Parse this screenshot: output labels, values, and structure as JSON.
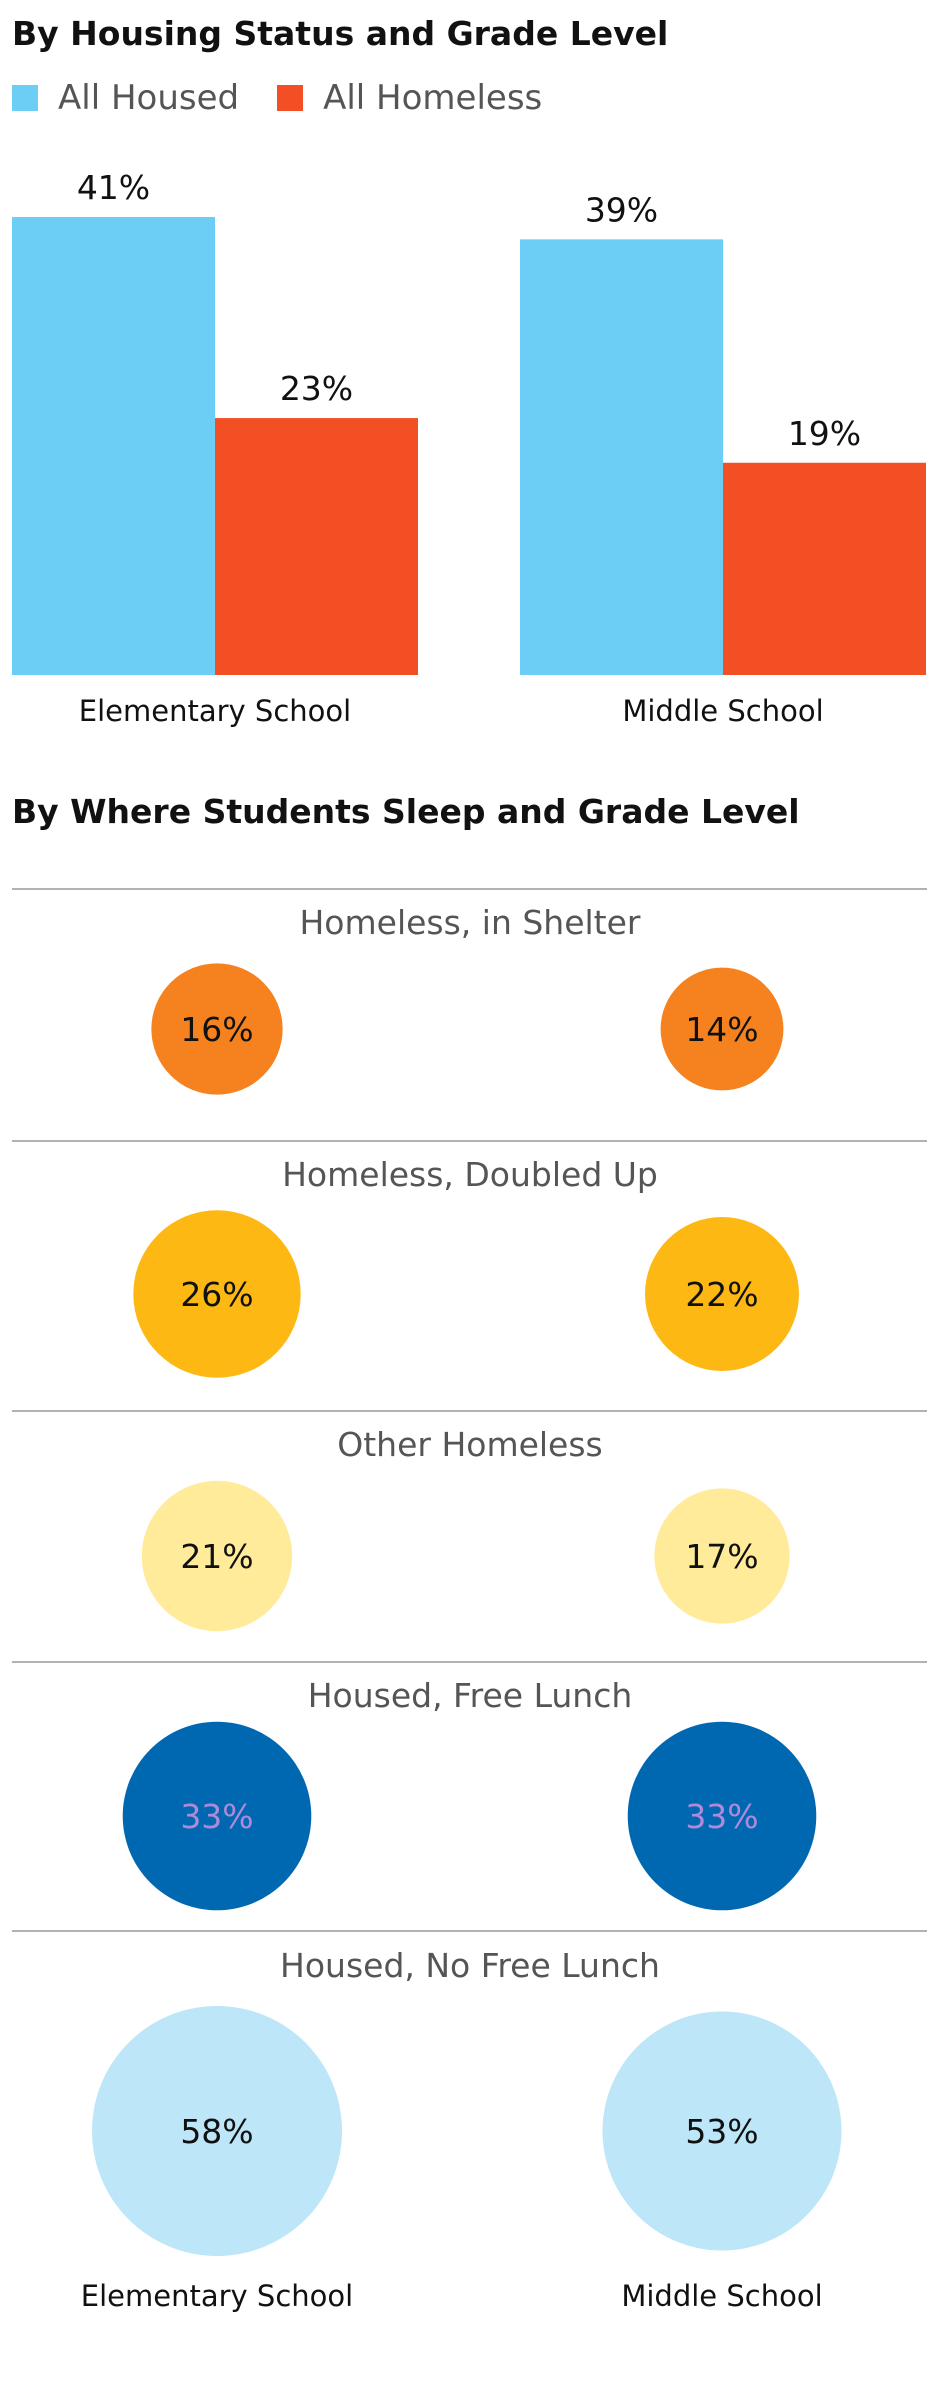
{
  "chart_data": [
    {
      "type": "bar",
      "title": "By Housing Status and Grade Level",
      "categories": [
        "Elementary School",
        "Middle School"
      ],
      "series": [
        {
          "name": "All Housed",
          "values": [
            41,
            39
          ],
          "labels": [
            "41%",
            "39%"
          ],
          "color": "#6dcef5"
        },
        {
          "name": "All Homeless",
          "values": [
            23,
            19
          ],
          "labels": [
            "23%",
            "19%"
          ],
          "color": "#f24f25"
        }
      ],
      "ylim": [
        0,
        41
      ]
    },
    {
      "type": "bubble",
      "title": "By Where Students Sleep and Grade Level",
      "columns": [
        "Elementary School",
        "Middle School"
      ],
      "groups": [
        {
          "name": "Homeless, in Shelter",
          "values": [
            16,
            14
          ],
          "labels": [
            "16%",
            "14%"
          ],
          "color": "#f5821f",
          "text_color": "#111111"
        },
        {
          "name": "Homeless, Doubled Up",
          "values": [
            26,
            22
          ],
          "labels": [
            "26%",
            "22%"
          ],
          "color": "#fdb813",
          "text_color": "#111111"
        },
        {
          "name": "Other Homeless",
          "values": [
            21,
            17
          ],
          "labels": [
            "21%",
            "17%"
          ],
          "color": "#ffeb99",
          "text_color": "#111111"
        },
        {
          "name": "Housed, Free Lunch",
          "values": [
            33,
            33
          ],
          "labels": [
            "33%",
            "33%"
          ],
          "color": "#0067b1",
          "text_color": "#b08ad8"
        },
        {
          "name": "Housed, No Free Lunch",
          "values": [
            58,
            53
          ],
          "labels": [
            "58%",
            "53%"
          ],
          "color": "#bde6f8",
          "text_color": "#111111"
        }
      ]
    }
  ]
}
